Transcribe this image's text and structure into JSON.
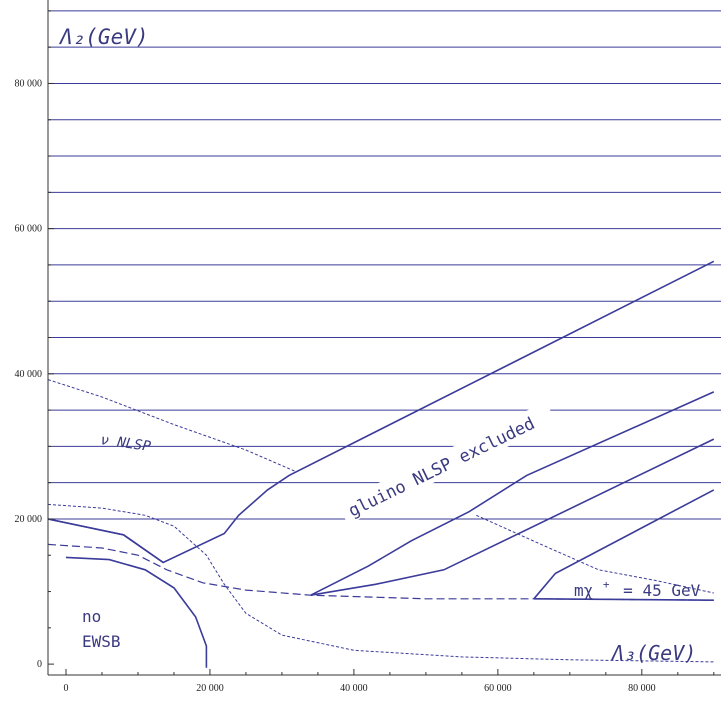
{
  "chart_data": {
    "type": "line",
    "xlim": [
      -2500,
      91000
    ],
    "ylim": [
      -1500,
      91500
    ],
    "x_ticks": [
      0,
      20000,
      40000,
      60000,
      80000
    ],
    "x_tick_labels": [
      "0",
      "20 000",
      "40 000",
      "60 000",
      "80 000"
    ],
    "y_ticks": [
      0,
      20000,
      40000,
      60000,
      80000
    ],
    "y_tick_labels": [
      "0",
      "20 000",
      "40 000",
      "60 000",
      "80 000"
    ],
    "hatch_y_values": [
      20000,
      25000,
      30000,
      35000,
      40000,
      45000,
      50000,
      55000,
      60000,
      65000,
      70000,
      75000,
      80000,
      85000,
      90000
    ],
    "grid": false,
    "labels": {
      "lambda2": "Λ₂(GeV)",
      "lambda3": "Λ₃(GeV)",
      "nu_nlsp": "ν NLSP",
      "gluino": "gluino NLSP excluded",
      "mchi_prefix": "mχ",
      "mchi_sup": "+",
      "mchi_suffix": "= 45 GeV",
      "no": "no",
      "ewsb": "EWSB"
    },
    "series": [
      {
        "style": "solid",
        "points": [
          [
            -2500,
            20000
          ],
          [
            8000,
            17800
          ],
          [
            13500,
            14000
          ],
          [
            22000,
            18000
          ],
          [
            24000,
            20500
          ],
          [
            28000,
            24000
          ],
          [
            31000,
            26000
          ],
          [
            90000,
            55500
          ]
        ]
      },
      {
        "style": "solid",
        "points": [
          [
            -2500,
            20000
          ],
          [
            8000,
            17800
          ],
          [
            13500,
            14000
          ]
        ]
      },
      {
        "style": "solid",
        "points": [
          [
            34000,
            9500
          ],
          [
            42000,
            13500
          ],
          [
            48000,
            17000
          ],
          [
            56000,
            21000
          ],
          [
            64000,
            26000
          ],
          [
            90000,
            37500
          ]
        ]
      },
      {
        "style": "solid",
        "points": [
          [
            34000,
            9500
          ],
          [
            43000,
            11000
          ],
          [
            52500,
            13000
          ],
          [
            90000,
            31000
          ]
        ]
      },
      {
        "style": "solid",
        "points": [
          [
            65000,
            9000
          ],
          [
            68000,
            12500
          ],
          [
            90000,
            24000
          ]
        ]
      },
      {
        "style": "solid",
        "points": [
          [
            65000,
            9000
          ],
          [
            90000,
            8800
          ]
        ]
      },
      {
        "style": "solid",
        "points": [
          [
            0,
            14700
          ],
          [
            6000,
            14400
          ],
          [
            11000,
            13000
          ],
          [
            15000,
            10500
          ],
          [
            18000,
            6500
          ],
          [
            19500,
            2500
          ],
          [
            19500,
            -500
          ]
        ]
      },
      {
        "style": "dashed-fine",
        "points": [
          [
            -2500,
            39200
          ],
          [
            5000,
            36800
          ],
          [
            15000,
            33000
          ],
          [
            25000,
            29500
          ],
          [
            32000,
            26500
          ]
        ]
      },
      {
        "style": "dashed-fine",
        "points": [
          [
            57000,
            20500
          ],
          [
            66000,
            16500
          ],
          [
            74000,
            13000
          ],
          [
            82000,
            11500
          ],
          [
            90000,
            9800
          ]
        ]
      },
      {
        "style": "dashed-fine",
        "points": [
          [
            -2500,
            22000
          ],
          [
            5000,
            21500
          ],
          [
            11000,
            20500
          ],
          [
            15000,
            19000
          ],
          [
            19500,
            15000
          ],
          [
            22000,
            11000
          ],
          [
            25000,
            7000
          ],
          [
            30000,
            4000
          ],
          [
            40000,
            1900
          ],
          [
            55000,
            1000
          ],
          [
            70000,
            600
          ],
          [
            90000,
            300
          ]
        ]
      },
      {
        "style": "dashed-long",
        "points": [
          [
            -2500,
            16500
          ],
          [
            5000,
            16000
          ],
          [
            10000,
            15000
          ],
          [
            14000,
            13000
          ],
          [
            19000,
            11200
          ],
          [
            25000,
            10200
          ],
          [
            34000,
            9500
          ],
          [
            50000,
            9000
          ],
          [
            65000,
            9000
          ],
          [
            90000,
            8800
          ]
        ]
      }
    ]
  }
}
